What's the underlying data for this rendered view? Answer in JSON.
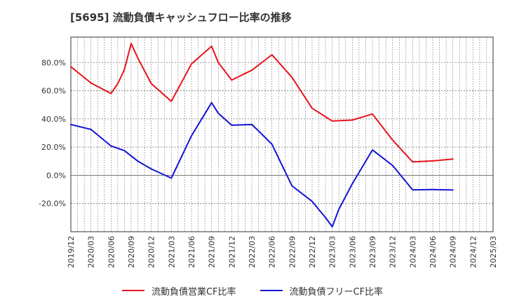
{
  "title": "[5695]  流動負債キャッシュフロー比率の推移",
  "chart_data": {
    "type": "line",
    "title": "[5695]  流動負債キャッシュフロー比率の推移",
    "xlabel": "",
    "ylabel": "",
    "ylim": [
      -40,
      98
    ],
    "yticks": [
      -20,
      0,
      20,
      40,
      60,
      80
    ],
    "ytick_labels": [
      "-20.0%",
      "0.0%",
      "20.0%",
      "40.0%",
      "60.0%",
      "80.0%"
    ],
    "xticks": [
      "2019/12",
      "2020/03",
      "2020/06",
      "2020/09",
      "2020/12",
      "2021/03",
      "2021/06",
      "2021/09",
      "2021/12",
      "2022/03",
      "2022/06",
      "2022/09",
      "2022/12",
      "2023/03",
      "2023/06",
      "2023/09",
      "2023/12",
      "2024/03",
      "2024/06",
      "2024/09",
      "2024/12",
      "2025/03"
    ],
    "grid": true,
    "legend_position": "bottom",
    "series": [
      {
        "name": "流動負債営業CF比率",
        "color": "#e8141c",
        "points": [
          [
            "2019/12",
            77
          ],
          [
            "2020/03",
            65.5
          ],
          [
            "2020/06",
            58
          ],
          [
            "2020/07",
            65
          ],
          [
            "2020/08",
            75
          ],
          [
            "2020/09",
            93.5
          ],
          [
            "2020/10",
            83
          ],
          [
            "2020/12",
            65
          ],
          [
            "2021/03",
            52.5
          ],
          [
            "2021/06",
            79
          ],
          [
            "2021/09",
            91.5
          ],
          [
            "2021/10",
            80
          ],
          [
            "2021/12",
            67.5
          ],
          [
            "2022/03",
            74.5
          ],
          [
            "2022/06",
            85.5
          ],
          [
            "2022/09",
            69.5
          ],
          [
            "2022/12",
            47.5
          ],
          [
            "2023/03",
            38.5
          ],
          [
            "2023/06",
            39.2
          ],
          [
            "2023/09",
            43.5
          ],
          [
            "2023/12",
            25
          ],
          [
            "2024/03",
            9.5
          ],
          [
            "2024/06",
            10.2
          ],
          [
            "2024/09",
            11.5
          ]
        ]
      },
      {
        "name": "流動負債フリーCF比率",
        "color": "#1414d4",
        "points": [
          [
            "2019/12",
            36
          ],
          [
            "2020/03",
            32.5
          ],
          [
            "2020/06",
            20.8
          ],
          [
            "2020/08",
            17.5
          ],
          [
            "2020/10",
            10
          ],
          [
            "2020/12",
            4.5
          ],
          [
            "2021/03",
            -2
          ],
          [
            "2021/06",
            28
          ],
          [
            "2021/09",
            51.5
          ],
          [
            "2021/10",
            44
          ],
          [
            "2021/12",
            35.5
          ],
          [
            "2022/03",
            36
          ],
          [
            "2022/04",
            31.5
          ],
          [
            "2022/06",
            22
          ],
          [
            "2022/09",
            -7.5
          ],
          [
            "2022/12",
            -18.5
          ],
          [
            "2023/02",
            -30
          ],
          [
            "2023/03",
            -36.5
          ],
          [
            "2023/04",
            -24
          ],
          [
            "2023/06",
            -6
          ],
          [
            "2023/09",
            18
          ],
          [
            "2023/12",
            7
          ],
          [
            "2024/03",
            -10.3
          ],
          [
            "2024/06",
            -10.1
          ],
          [
            "2024/09",
            -10.4
          ]
        ]
      }
    ]
  }
}
